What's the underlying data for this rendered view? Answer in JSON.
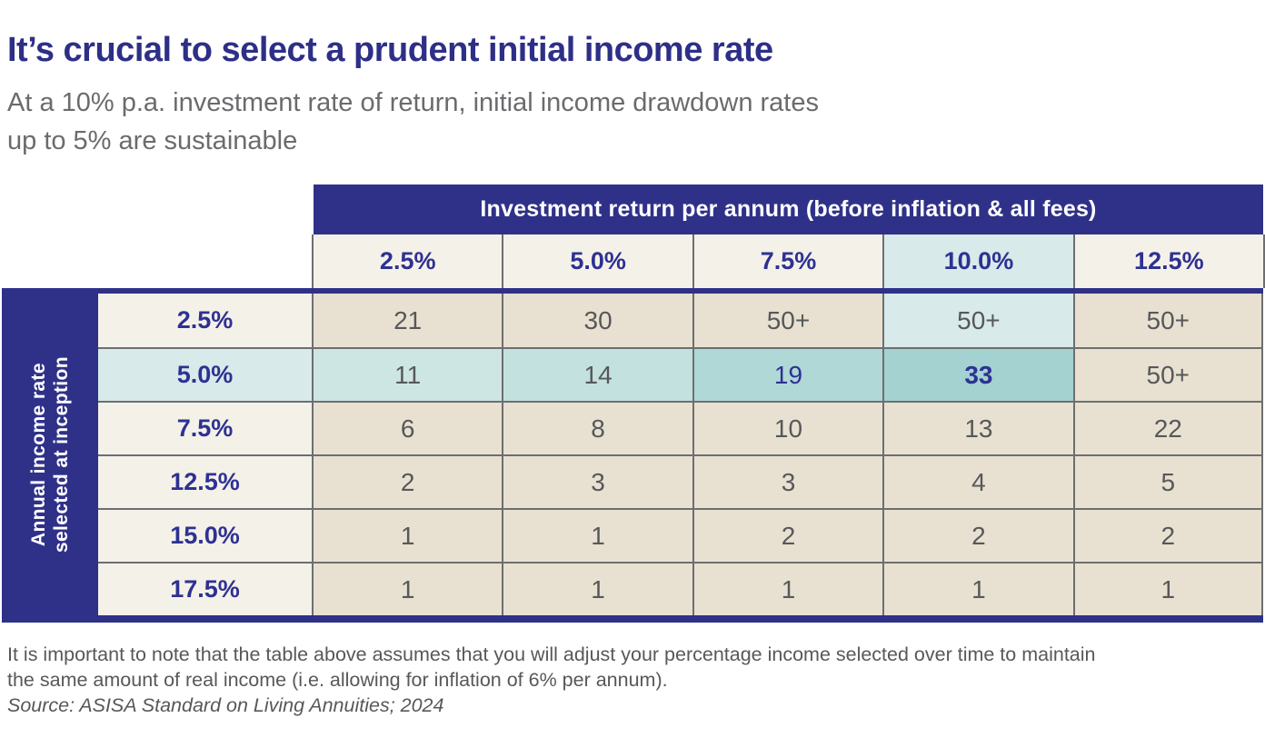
{
  "page": {
    "title": "It’s crucial to select a prudent initial income rate",
    "subtitle_line1": "At a 10% p.a. investment rate of return, initial income drawdown rates",
    "subtitle_line2": "up to 5% are sustainable",
    "footnote_line1": "It is important to note that the table above assumes that you will adjust your percentage income selected over time to maintain",
    "footnote_line2": "the same amount of real income (i.e. allowing for inflation of 6% per annum).",
    "source": "Source: ASISA Standard on Living Annuities; 2024"
  },
  "colors": {
    "navy": "#2F3189",
    "title_navy": "#2D2F87",
    "cream": "#F4F1E9",
    "beige": "#E8E1D1",
    "light_blue": "#D8EAE9",
    "cyan_1": "#CDE6E4",
    "cyan_2": "#C3E1DF",
    "teal_1": "#AFD8D6",
    "teal_2": "#A3D2D1",
    "border_gray": "#6D6E71",
    "text_gray": "#57585A",
    "subtitle_gray": "#6A6B6D"
  },
  "chart_data": {
    "type": "table",
    "title": "It’s crucial to select a prudent initial income rate",
    "subtitle": "At a 10% p.a. investment rate of return, initial income drawdown rates up to 5% are sustainable",
    "column_group_header": "Investment return per annum (before inflation & all fees)",
    "row_group_header": "Annual income rate selected at inception",
    "row_group_header_line1": "Annual income rate",
    "row_group_header_line2": "selected at inception",
    "columns": [
      "2.5%",
      "5.0%",
      "7.5%",
      "10.0%",
      "12.5%"
    ],
    "rows": [
      {
        "label": "2.5%",
        "values": [
          "21",
          "30",
          "50+",
          "50+",
          "50+"
        ]
      },
      {
        "label": "5.0%",
        "values": [
          "11",
          "14",
          "19",
          "33",
          "50+"
        ]
      },
      {
        "label": "7.5%",
        "values": [
          "6",
          "8",
          "10",
          "13",
          "22"
        ]
      },
      {
        "label": "12.5%",
        "values": [
          "2",
          "3",
          "3",
          "4",
          "5"
        ]
      },
      {
        "label": "15.0%",
        "values": [
          "1",
          "1",
          "2",
          "2",
          "2"
        ]
      },
      {
        "label": "17.5%",
        "values": [
          "1",
          "1",
          "1",
          "1",
          "1"
        ]
      }
    ],
    "highlighted_column": "10.0%",
    "highlighted_row": "5.0%",
    "highlighted_cell_value": "33"
  }
}
